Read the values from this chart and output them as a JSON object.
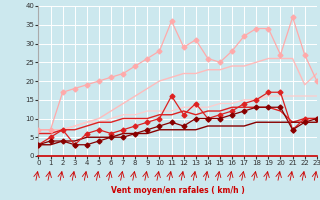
{
  "x": [
    0,
    1,
    2,
    3,
    4,
    5,
    6,
    7,
    8,
    9,
    10,
    11,
    12,
    13,
    14,
    15,
    16,
    17,
    18,
    19,
    20,
    21,
    22,
    23
  ],
  "lines": [
    {
      "y": [
        7,
        7,
        17,
        18,
        19,
        20,
        21,
        22,
        24,
        26,
        28,
        36,
        29,
        31,
        26,
        25,
        28,
        32,
        34,
        34,
        27,
        37,
        27,
        20
      ],
      "color": "#ffaaaa",
      "lw": 0.9,
      "marker": "D",
      "ms": 2.5
    },
    {
      "y": [
        7,
        7,
        7,
        8,
        9,
        10,
        12,
        14,
        16,
        18,
        20,
        21,
        22,
        22,
        23,
        23,
        24,
        24,
        25,
        26,
        26,
        26,
        19,
        22
      ],
      "color": "#ffbbbb",
      "lw": 1.0,
      "marker": null,
      "ms": 0
    },
    {
      "y": [
        6,
        6,
        7,
        8,
        9,
        9,
        10,
        11,
        11,
        12,
        12,
        12,
        13,
        13,
        13,
        14,
        14,
        15,
        15,
        16,
        16,
        16,
        16,
        16
      ],
      "color": "#ffcccc",
      "lw": 0.9,
      "marker": null,
      "ms": 0
    },
    {
      "y": [
        3,
        5,
        7,
        3,
        6,
        7,
        6,
        7,
        8,
        9,
        10,
        16,
        11,
        14,
        10,
        11,
        12,
        14,
        15,
        17,
        17,
        7,
        10,
        10
      ],
      "color": "#dd2222",
      "lw": 0.9,
      "marker": "D",
      "ms": 2.5
    },
    {
      "y": [
        6,
        6,
        7,
        7,
        8,
        9,
        9,
        10,
        10,
        10,
        11,
        11,
        12,
        11,
        12,
        12,
        13,
        13,
        13,
        13,
        12,
        9,
        10,
        10
      ],
      "color": "#dd2222",
      "lw": 1.0,
      "marker": null,
      "ms": 0
    },
    {
      "y": [
        3,
        4,
        4,
        3,
        3,
        4,
        5,
        5,
        6,
        7,
        8,
        9,
        8,
        10,
        10,
        10,
        11,
        12,
        13,
        13,
        13,
        7,
        9,
        10
      ],
      "color": "#880000",
      "lw": 0.9,
      "marker": "D",
      "ms": 2.5
    },
    {
      "y": [
        3,
        3,
        4,
        4,
        5,
        5,
        5,
        6,
        6,
        6,
        7,
        7,
        7,
        7,
        8,
        8,
        8,
        8,
        9,
        9,
        9,
        9,
        9,
        9
      ],
      "color": "#880000",
      "lw": 1.0,
      "marker": null,
      "ms": 0
    }
  ],
  "xlabel": "Vent moyen/en rafales ( km/h )",
  "xlim": [
    0,
    23
  ],
  "ylim": [
    0,
    40
  ],
  "yticks": [
    0,
    5,
    10,
    15,
    20,
    25,
    30,
    35,
    40
  ],
  "xticks": [
    0,
    1,
    2,
    3,
    4,
    5,
    6,
    7,
    8,
    9,
    10,
    11,
    12,
    13,
    14,
    15,
    16,
    17,
    18,
    19,
    20,
    21,
    22,
    23
  ],
  "bg_color": "#cce8ee",
  "grid_color": "#ffffff"
}
